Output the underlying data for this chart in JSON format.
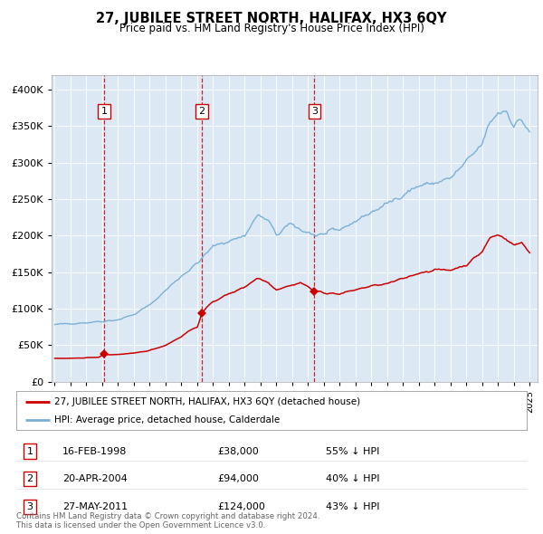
{
  "title": "27, JUBILEE STREET NORTH, HALIFAX, HX3 6QY",
  "subtitle": "Price paid vs. HM Land Registry's House Price Index (HPI)",
  "plot_bg_color": "#dce9f5",
  "red_line_color": "#cc0000",
  "blue_line_color": "#7ab0d4",
  "vline_color": "#cc0000",
  "purchase_dates": [
    1998.12,
    2004.3,
    2011.4
  ],
  "purchase_prices": [
    38000,
    94000,
    124000
  ],
  "purchase_labels": [
    "1",
    "2",
    "3"
  ],
  "legend_entries": [
    "27, JUBILEE STREET NORTH, HALIFAX, HX3 6QY (detached house)",
    "HPI: Average price, detached house, Calderdale"
  ],
  "table_rows": [
    [
      "1",
      "16-FEB-1998",
      "£38,000",
      "55% ↓ HPI"
    ],
    [
      "2",
      "20-APR-2004",
      "£94,000",
      "40% ↓ HPI"
    ],
    [
      "3",
      "27-MAY-2011",
      "£124,000",
      "43% ↓ HPI"
    ]
  ],
  "footer": "Contains HM Land Registry data © Crown copyright and database right 2024.\nThis data is licensed under the Open Government Licence v3.0.",
  "ylim": [
    0,
    420000
  ],
  "yticks": [
    0,
    50000,
    100000,
    150000,
    200000,
    250000,
    300000,
    350000,
    400000
  ],
  "ytick_labels": [
    "£0",
    "£50K",
    "£100K",
    "£150K",
    "£200K",
    "£250K",
    "£300K",
    "£350K",
    "£400K"
  ],
  "xlim_start": 1994.8,
  "xlim_end": 2025.5,
  "blue_anchors": [
    [
      1995.0,
      78000
    ],
    [
      1996.0,
      80000
    ],
    [
      1997.0,
      81000
    ],
    [
      1998.0,
      83000
    ],
    [
      1999.0,
      85000
    ],
    [
      2000.0,
      92000
    ],
    [
      2001.0,
      105000
    ],
    [
      2002.0,
      125000
    ],
    [
      2003.0,
      145000
    ],
    [
      2004.0,
      162000
    ],
    [
      2005.0,
      185000
    ],
    [
      2006.0,
      193000
    ],
    [
      2007.0,
      200000
    ],
    [
      2007.8,
      228000
    ],
    [
      2008.5,
      220000
    ],
    [
      2009.0,
      200000
    ],
    [
      2009.5,
      210000
    ],
    [
      2010.0,
      215000
    ],
    [
      2010.5,
      208000
    ],
    [
      2011.0,
      205000
    ],
    [
      2011.5,
      200000
    ],
    [
      2012.0,
      202000
    ],
    [
      2013.0,
      208000
    ],
    [
      2014.0,
      220000
    ],
    [
      2015.0,
      232000
    ],
    [
      2016.0,
      243000
    ],
    [
      2017.0,
      257000
    ],
    [
      2018.0,
      268000
    ],
    [
      2019.0,
      272000
    ],
    [
      2020.0,
      278000
    ],
    [
      2021.0,
      300000
    ],
    [
      2022.0,
      325000
    ],
    [
      2022.5,
      355000
    ],
    [
      2023.0,
      368000
    ],
    [
      2023.5,
      372000
    ],
    [
      2024.0,
      352000
    ],
    [
      2024.5,
      358000
    ],
    [
      2025.0,
      342000
    ]
  ],
  "red_anchors": [
    [
      1995.0,
      32000
    ],
    [
      1996.0,
      32000
    ],
    [
      1997.0,
      33000
    ],
    [
      1997.8,
      33500
    ],
    [
      1998.12,
      38000
    ],
    [
      1998.5,
      37000
    ],
    [
      1999.0,
      37500
    ],
    [
      2000.0,
      39000
    ],
    [
      2001.0,
      43000
    ],
    [
      2002.0,
      50000
    ],
    [
      2003.0,
      62000
    ],
    [
      2003.5,
      70000
    ],
    [
      2004.0,
      75000
    ],
    [
      2004.3,
      94000
    ],
    [
      2005.0,
      110000
    ],
    [
      2006.0,
      120000
    ],
    [
      2007.0,
      130000
    ],
    [
      2007.8,
      142000
    ],
    [
      2008.5,
      136000
    ],
    [
      2009.0,
      126000
    ],
    [
      2009.5,
      130000
    ],
    [
      2010.0,
      132000
    ],
    [
      2010.5,
      136000
    ],
    [
      2011.0,
      130000
    ],
    [
      2011.4,
      124000
    ],
    [
      2012.0,
      122000
    ],
    [
      2013.0,
      120000
    ],
    [
      2014.0,
      126000
    ],
    [
      2015.0,
      131000
    ],
    [
      2016.0,
      134000
    ],
    [
      2017.0,
      141000
    ],
    [
      2018.0,
      149000
    ],
    [
      2019.0,
      153000
    ],
    [
      2020.0,
      153000
    ],
    [
      2021.0,
      160000
    ],
    [
      2022.0,
      178000
    ],
    [
      2022.5,
      197000
    ],
    [
      2023.0,
      201000
    ],
    [
      2023.5,
      196000
    ],
    [
      2024.0,
      187000
    ],
    [
      2024.5,
      190000
    ],
    [
      2025.0,
      177000
    ]
  ]
}
